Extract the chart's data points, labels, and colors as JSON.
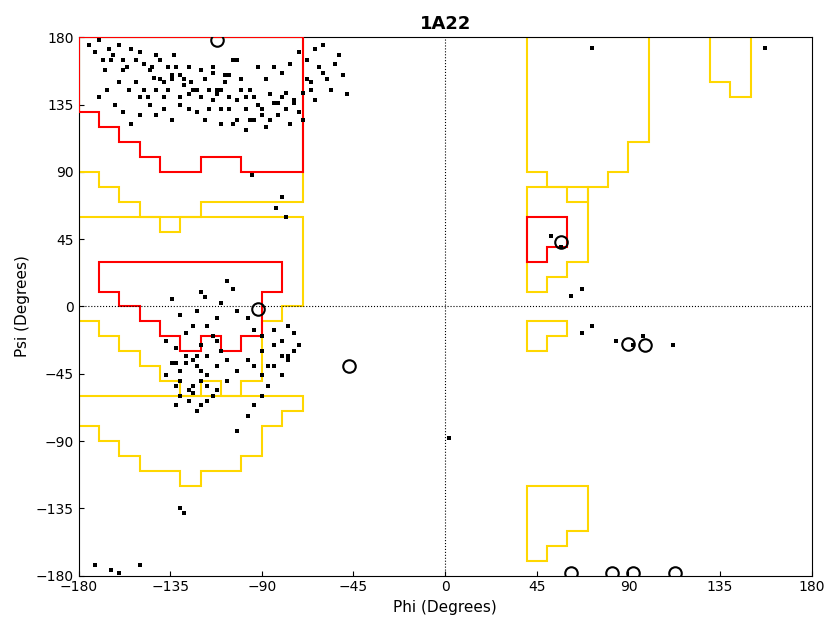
{
  "title": "1A22",
  "xlabel": "Phi (Degrees)",
  "ylabel": "Psi (Degrees)",
  "xlim": [
    -180,
    180
  ],
  "ylim": [
    -180,
    180
  ],
  "xticks": [
    -180,
    -135,
    -90,
    -45,
    0,
    45,
    90,
    135,
    180
  ],
  "yticks": [
    -180,
    -135,
    -90,
    -45,
    0,
    45,
    90,
    135,
    180
  ],
  "core_beta_red": [
    [
      -180,
      180
    ],
    [
      -180,
      130
    ],
    [
      -170,
      130
    ],
    [
      -170,
      120
    ],
    [
      -160,
      120
    ],
    [
      -160,
      110
    ],
    [
      -150,
      110
    ],
    [
      -150,
      100
    ],
    [
      -140,
      100
    ],
    [
      -140,
      90
    ],
    [
      -130,
      90
    ],
    [
      -120,
      90
    ],
    [
      -120,
      100
    ],
    [
      -110,
      100
    ],
    [
      -100,
      100
    ],
    [
      -100,
      90
    ],
    [
      -90,
      90
    ],
    [
      -80,
      90
    ],
    [
      -70,
      90
    ],
    [
      -70,
      180
    ],
    [
      -180,
      180
    ]
  ],
  "core_alpha_red": [
    [
      -170,
      30
    ],
    [
      -170,
      10
    ],
    [
      -160,
      10
    ],
    [
      -160,
      0
    ],
    [
      -150,
      0
    ],
    [
      -150,
      -10
    ],
    [
      -140,
      -10
    ],
    [
      -140,
      -20
    ],
    [
      -130,
      -20
    ],
    [
      -130,
      -30
    ],
    [
      -120,
      -30
    ],
    [
      -120,
      -20
    ],
    [
      -110,
      -20
    ],
    [
      -110,
      -30
    ],
    [
      -100,
      -30
    ],
    [
      -100,
      -20
    ],
    [
      -90,
      -20
    ],
    [
      -90,
      10
    ],
    [
      -80,
      10
    ],
    [
      -80,
      30
    ],
    [
      -170,
      30
    ]
  ],
  "core_l_alpha_red": [
    [
      40,
      60
    ],
    [
      40,
      30
    ],
    [
      50,
      30
    ],
    [
      50,
      40
    ],
    [
      60,
      40
    ],
    [
      60,
      60
    ],
    [
      40,
      60
    ]
  ],
  "allowed_beta_yellow": [
    [
      -180,
      180
    ],
    [
      -180,
      90
    ],
    [
      -170,
      90
    ],
    [
      -170,
      80
    ],
    [
      -160,
      80
    ],
    [
      -160,
      70
    ],
    [
      -150,
      70
    ],
    [
      -150,
      60
    ],
    [
      -140,
      60
    ],
    [
      -140,
      50
    ],
    [
      -130,
      50
    ],
    [
      -130,
      60
    ],
    [
      -120,
      60
    ],
    [
      -120,
      70
    ],
    [
      -110,
      70
    ],
    [
      -100,
      70
    ],
    [
      -90,
      70
    ],
    [
      -80,
      70
    ],
    [
      -70,
      70
    ],
    [
      -70,
      180
    ],
    [
      -180,
      180
    ]
  ],
  "allowed_alpha_yellow": [
    [
      -180,
      60
    ],
    [
      -180,
      -10
    ],
    [
      -170,
      -10
    ],
    [
      -170,
      -20
    ],
    [
      -160,
      -20
    ],
    [
      -160,
      -30
    ],
    [
      -150,
      -30
    ],
    [
      -150,
      -40
    ],
    [
      -140,
      -40
    ],
    [
      -140,
      -50
    ],
    [
      -130,
      -50
    ],
    [
      -130,
      -60
    ],
    [
      -120,
      -60
    ],
    [
      -120,
      -50
    ],
    [
      -110,
      -50
    ],
    [
      -110,
      -60
    ],
    [
      -100,
      -60
    ],
    [
      -100,
      -50
    ],
    [
      -90,
      -50
    ],
    [
      -90,
      -10
    ],
    [
      -80,
      -10
    ],
    [
      -80,
      0
    ],
    [
      -70,
      0
    ],
    [
      -70,
      60
    ],
    [
      -180,
      60
    ]
  ],
  "allowed_1_yellow": [
    [
      -180,
      -60
    ],
    [
      -180,
      -80
    ],
    [
      -170,
      -80
    ],
    [
      -170,
      -90
    ],
    [
      -160,
      -90
    ],
    [
      -160,
      -100
    ],
    [
      -150,
      -100
    ],
    [
      -150,
      -110
    ],
    [
      -140,
      -110
    ],
    [
      -130,
      -110
    ],
    [
      -130,
      -120
    ],
    [
      -120,
      -120
    ],
    [
      -120,
      -110
    ],
    [
      -110,
      -110
    ],
    [
      -100,
      -110
    ],
    [
      -100,
      -100
    ],
    [
      -90,
      -100
    ],
    [
      -90,
      -80
    ],
    [
      -80,
      -80
    ],
    [
      -80,
      -70
    ],
    [
      -70,
      -70
    ],
    [
      -70,
      -60
    ],
    [
      -180,
      -60
    ]
  ],
  "allowed_2_yellow": [
    [
      40,
      180
    ],
    [
      40,
      90
    ],
    [
      50,
      90
    ],
    [
      50,
      80
    ],
    [
      60,
      80
    ],
    [
      60,
      70
    ],
    [
      70,
      70
    ],
    [
      70,
      80
    ],
    [
      80,
      80
    ],
    [
      80,
      90
    ],
    [
      90,
      90
    ],
    [
      90,
      110
    ],
    [
      100,
      110
    ],
    [
      100,
      180
    ],
    [
      40,
      180
    ]
  ],
  "allowed_3_yellow": [
    [
      40,
      80
    ],
    [
      40,
      10
    ],
    [
      50,
      10
    ],
    [
      50,
      20
    ],
    [
      60,
      20
    ],
    [
      60,
      30
    ],
    [
      70,
      30
    ],
    [
      70,
      80
    ],
    [
      40,
      80
    ]
  ],
  "allowed_4_yellow": [
    [
      40,
      -10
    ],
    [
      40,
      -30
    ],
    [
      50,
      -30
    ],
    [
      50,
      -20
    ],
    [
      60,
      -20
    ],
    [
      60,
      -10
    ],
    [
      40,
      -10
    ]
  ],
  "allowed_5_yellow": [
    [
      40,
      -120
    ],
    [
      40,
      -170
    ],
    [
      50,
      -170
    ],
    [
      50,
      -160
    ],
    [
      60,
      -160
    ],
    [
      60,
      -150
    ],
    [
      70,
      -150
    ],
    [
      70,
      -120
    ],
    [
      40,
      -120
    ]
  ],
  "allowed_6_yellow": [
    [
      130,
      180
    ],
    [
      130,
      150
    ],
    [
      140,
      150
    ],
    [
      140,
      140
    ],
    [
      150,
      140
    ],
    [
      150,
      180
    ],
    [
      130,
      180
    ]
  ],
  "residue_points": [
    [
      -175,
      175
    ],
    [
      -172,
      170
    ],
    [
      -170,
      178
    ],
    [
      -168,
      165
    ],
    [
      -165,
      172
    ],
    [
      -163,
      168
    ],
    [
      -160,
      175
    ],
    [
      -158,
      165
    ],
    [
      -156,
      160
    ],
    [
      -154,
      172
    ],
    [
      -152,
      165
    ],
    [
      -150,
      170
    ],
    [
      -148,
      162
    ],
    [
      -145,
      158
    ],
    [
      -143,
      153
    ],
    [
      -142,
      168
    ],
    [
      -140,
      165
    ],
    [
      -138,
      150
    ],
    [
      -136,
      160
    ],
    [
      -134,
      155
    ],
    [
      -133,
      168
    ],
    [
      -130,
      155
    ],
    [
      -128,
      148
    ],
    [
      -126,
      160
    ],
    [
      -125,
      150
    ],
    [
      -123,
      145
    ],
    [
      -120,
      158
    ],
    [
      -118,
      152
    ],
    [
      -116,
      145
    ],
    [
      -114,
      156
    ],
    [
      -112,
      142
    ],
    [
      -110,
      132
    ],
    [
      -108,
      150
    ],
    [
      -106,
      140
    ],
    [
      -104,
      122
    ],
    [
      -102,
      138
    ],
    [
      -100,
      145
    ],
    [
      -98,
      132
    ],
    [
      -96,
      125
    ],
    [
      -94,
      140
    ],
    [
      -92,
      135
    ],
    [
      -90,
      128
    ],
    [
      -88,
      120
    ],
    [
      -86,
      142
    ],
    [
      -84,
      136
    ],
    [
      -82,
      128
    ],
    [
      -80,
      140
    ],
    [
      -78,
      132
    ],
    [
      -76,
      122
    ],
    [
      -74,
      138
    ],
    [
      -72,
      130
    ],
    [
      -70,
      125
    ],
    [
      -68,
      152
    ],
    [
      -66,
      145
    ],
    [
      -64,
      138
    ],
    [
      -62,
      160
    ],
    [
      -60,
      156
    ],
    [
      -58,
      152
    ],
    [
      -56,
      145
    ],
    [
      -54,
      162
    ],
    [
      -52,
      168
    ],
    [
      -50,
      155
    ],
    [
      -48,
      142
    ],
    [
      -167,
      158
    ],
    [
      -160,
      150
    ],
    [
      -155,
      145
    ],
    [
      -150,
      140
    ],
    [
      -145,
      135
    ],
    [
      -142,
      128
    ],
    [
      -138,
      140
    ],
    [
      -134,
      152
    ],
    [
      -130,
      135
    ],
    [
      -126,
      142
    ],
    [
      -122,
      130
    ],
    [
      -118,
      125
    ],
    [
      -114,
      138
    ],
    [
      -110,
      122
    ],
    [
      -106,
      132
    ],
    [
      -102,
      125
    ],
    [
      -98,
      118
    ],
    [
      -94,
      140
    ],
    [
      -90,
      132
    ],
    [
      -86,
      125
    ],
    [
      -82,
      136
    ],
    [
      -78,
      143
    ],
    [
      -74,
      136
    ],
    [
      -70,
      143
    ],
    [
      -66,
      150
    ],
    [
      -164,
      165
    ],
    [
      -158,
      158
    ],
    [
      -152,
      150
    ],
    [
      -148,
      145
    ],
    [
      -144,
      160
    ],
    [
      -140,
      152
    ],
    [
      -136,
      145
    ],
    [
      -132,
      160
    ],
    [
      -128,
      152
    ],
    [
      -124,
      145
    ],
    [
      -120,
      140
    ],
    [
      -116,
      132
    ],
    [
      -112,
      145
    ],
    [
      -108,
      155
    ],
    [
      -104,
      165
    ],
    [
      -100,
      152
    ],
    [
      -96,
      145
    ],
    [
      -92,
      160
    ],
    [
      -88,
      152
    ],
    [
      -84,
      160
    ],
    [
      -80,
      156
    ],
    [
      -76,
      162
    ],
    [
      -72,
      170
    ],
    [
      -68,
      165
    ],
    [
      -64,
      172
    ],
    [
      -60,
      175
    ],
    [
      -170,
      140
    ],
    [
      -166,
      145
    ],
    [
      -162,
      135
    ],
    [
      -158,
      130
    ],
    [
      -154,
      122
    ],
    [
      -150,
      128
    ],
    [
      -146,
      140
    ],
    [
      -142,
      145
    ],
    [
      -138,
      132
    ],
    [
      -134,
      125
    ],
    [
      -130,
      140
    ],
    [
      -126,
      132
    ],
    [
      -122,
      145
    ],
    [
      -118,
      152
    ],
    [
      -114,
      160
    ],
    [
      -110,
      145
    ],
    [
      -106,
      155
    ],
    [
      -102,
      165
    ],
    [
      -98,
      140
    ],
    [
      -94,
      125
    ],
    [
      -80,
      73
    ],
    [
      -83,
      66
    ],
    [
      -78,
      60
    ],
    [
      -122,
      -3
    ],
    [
      -118,
      6
    ],
    [
      -112,
      -8
    ],
    [
      -120,
      10
    ],
    [
      -124,
      -13
    ],
    [
      -107,
      17
    ],
    [
      -110,
      2
    ],
    [
      -102,
      -3
    ],
    [
      -97,
      -8
    ],
    [
      -104,
      12
    ],
    [
      -130,
      -6
    ],
    [
      -134,
      5
    ],
    [
      -127,
      -18
    ],
    [
      -132,
      -28
    ],
    [
      -137,
      -23
    ],
    [
      -117,
      -13
    ],
    [
      -114,
      -20
    ],
    [
      -120,
      -26
    ],
    [
      -122,
      -33
    ],
    [
      -127,
      -38
    ],
    [
      -112,
      -23
    ],
    [
      -110,
      -30
    ],
    [
      -107,
      -36
    ],
    [
      -117,
      -33
    ],
    [
      -122,
      -40
    ],
    [
      -127,
      -33
    ],
    [
      -132,
      -38
    ],
    [
      -120,
      -43
    ],
    [
      -124,
      -36
    ],
    [
      -130,
      -43
    ],
    [
      -134,
      -38
    ],
    [
      -137,
      -46
    ],
    [
      -130,
      -50
    ],
    [
      -124,
      -53
    ],
    [
      -117,
      -46
    ],
    [
      -112,
      -40
    ],
    [
      -120,
      -50
    ],
    [
      -126,
      -56
    ],
    [
      -132,
      -53
    ],
    [
      -130,
      -60
    ],
    [
      -124,
      -58
    ],
    [
      -117,
      -53
    ],
    [
      -114,
      -60
    ],
    [
      -120,
      -66
    ],
    [
      -126,
      -63
    ],
    [
      -132,
      -66
    ],
    [
      -122,
      -70
    ],
    [
      -117,
      -63
    ],
    [
      -112,
      -56
    ],
    [
      -107,
      -50
    ],
    [
      -102,
      -43
    ],
    [
      -97,
      -36
    ],
    [
      -94,
      -40
    ],
    [
      -90,
      -46
    ],
    [
      -87,
      -53
    ],
    [
      -90,
      -60
    ],
    [
      -94,
      -66
    ],
    [
      -97,
      -73
    ],
    [
      -90,
      -30
    ],
    [
      -84,
      -26
    ],
    [
      -80,
      -33
    ],
    [
      -84,
      -40
    ],
    [
      -80,
      -46
    ],
    [
      -77,
      -36
    ],
    [
      -74,
      -30
    ],
    [
      -87,
      -40
    ],
    [
      -90,
      -20
    ],
    [
      -94,
      -16
    ],
    [
      -84,
      -16
    ],
    [
      -80,
      -23
    ],
    [
      -74,
      -18
    ],
    [
      -77,
      -13
    ],
    [
      -72,
      -26
    ],
    [
      -77,
      -33
    ],
    [
      -172,
      -173
    ],
    [
      -164,
      -176
    ],
    [
      -160,
      -178
    ],
    [
      -150,
      -173
    ],
    [
      -102,
      -83
    ],
    [
      2,
      -88
    ],
    [
      67,
      -18
    ],
    [
      72,
      -13
    ],
    [
      52,
      47
    ],
    [
      57,
      40
    ],
    [
      84,
      -23
    ],
    [
      92,
      -26
    ],
    [
      97,
      -20
    ],
    [
      112,
      -26
    ],
    [
      62,
      7
    ],
    [
      67,
      12
    ],
    [
      157,
      173
    ],
    [
      72,
      173
    ],
    [
      -130,
      -135
    ],
    [
      -128,
      -138
    ],
    [
      -95,
      88
    ]
  ],
  "glycine_points": [
    [
      -112,
      178
    ],
    [
      -92,
      -2
    ],
    [
      -47,
      -40
    ],
    [
      57,
      43
    ],
    [
      62,
      -178
    ],
    [
      82,
      -178
    ],
    [
      92,
      -178
    ],
    [
      113,
      -178
    ],
    [
      90,
      -25
    ],
    [
      98,
      -26
    ]
  ],
  "background_color": "#ffffff",
  "border_color": "#FFD700",
  "core_color": "#FF0000",
  "point_color": "#000000",
  "glycine_color": "#000000",
  "title_fontsize": 13,
  "axis_label_fontsize": 11
}
